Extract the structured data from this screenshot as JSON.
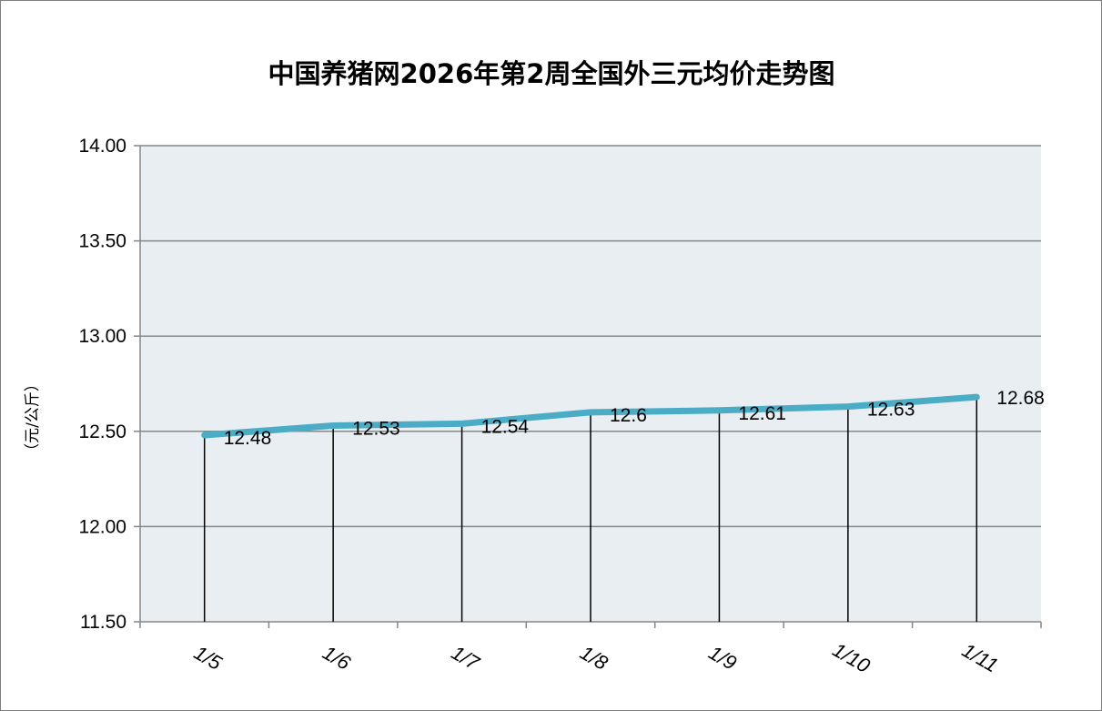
{
  "chart_data": {
    "type": "line",
    "title": "中国养猪网2026年第2周全国外三元均价走势图",
    "ylabel": "（元/公斤）",
    "xlabel": "",
    "categories": [
      "1/5",
      "1/6",
      "1/7",
      "1/8",
      "1/9",
      "1/10",
      "1/11"
    ],
    "series": [
      {
        "values": [
          12.48,
          12.53,
          12.54,
          12.6,
          12.61,
          12.63,
          12.68
        ]
      }
    ],
    "data_labels": [
      "12.48",
      "12.53",
      "12.54",
      "12.6",
      "12.61",
      "12.63",
      "12.68"
    ],
    "ylim": [
      11.5,
      14.0
    ],
    "yticks": [
      "11.50",
      "12.00",
      "12.50",
      "13.00",
      "13.50",
      "14.00"
    ],
    "ytick_values": [
      11.5,
      12.0,
      12.5,
      13.0,
      13.5,
      14.0
    ],
    "grid": true,
    "drop_lines": true,
    "legend": "none",
    "colors": {
      "line": "#4bacc6",
      "plot_bg": "#e8eef2",
      "grid": "#878787",
      "drop": "#000000"
    }
  }
}
